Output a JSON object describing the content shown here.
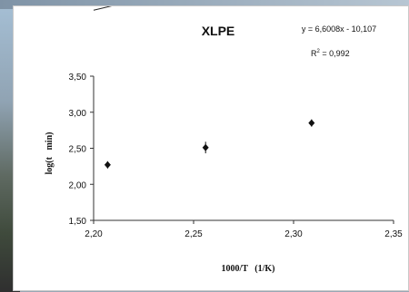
{
  "chart_data": {
    "type": "scatter",
    "title": "XLPE",
    "annotation_eq": "y = 6,6008x - 10,107",
    "annotation_r2_prefix": "R",
    "annotation_r2_sup": "2",
    "annotation_r2_value": " = 0,992",
    "xlabel": "1000/T   (1/K)",
    "ylabel": "log(t   min)",
    "xlim": [
      2.2,
      2.35
    ],
    "ylim": [
      1.5,
      3.5
    ],
    "x_ticks": [
      "2,20",
      "2,25",
      "2,30",
      "2,35"
    ],
    "y_ticks": [
      "3,50",
      "3,00",
      "2,50",
      "2,00",
      "1,50"
    ],
    "grid": false,
    "points": [
      {
        "x": 2.207,
        "y": 2.27,
        "err": 0.05
      },
      {
        "x": 2.256,
        "y": 2.51,
        "err": 0.08
      },
      {
        "x": 2.309,
        "y": 2.85,
        "err": 0.05
      }
    ],
    "trendline": {
      "slope": 6.6008,
      "intercept": -10.107,
      "x_range": [
        2.2,
        2.35
      ]
    }
  }
}
